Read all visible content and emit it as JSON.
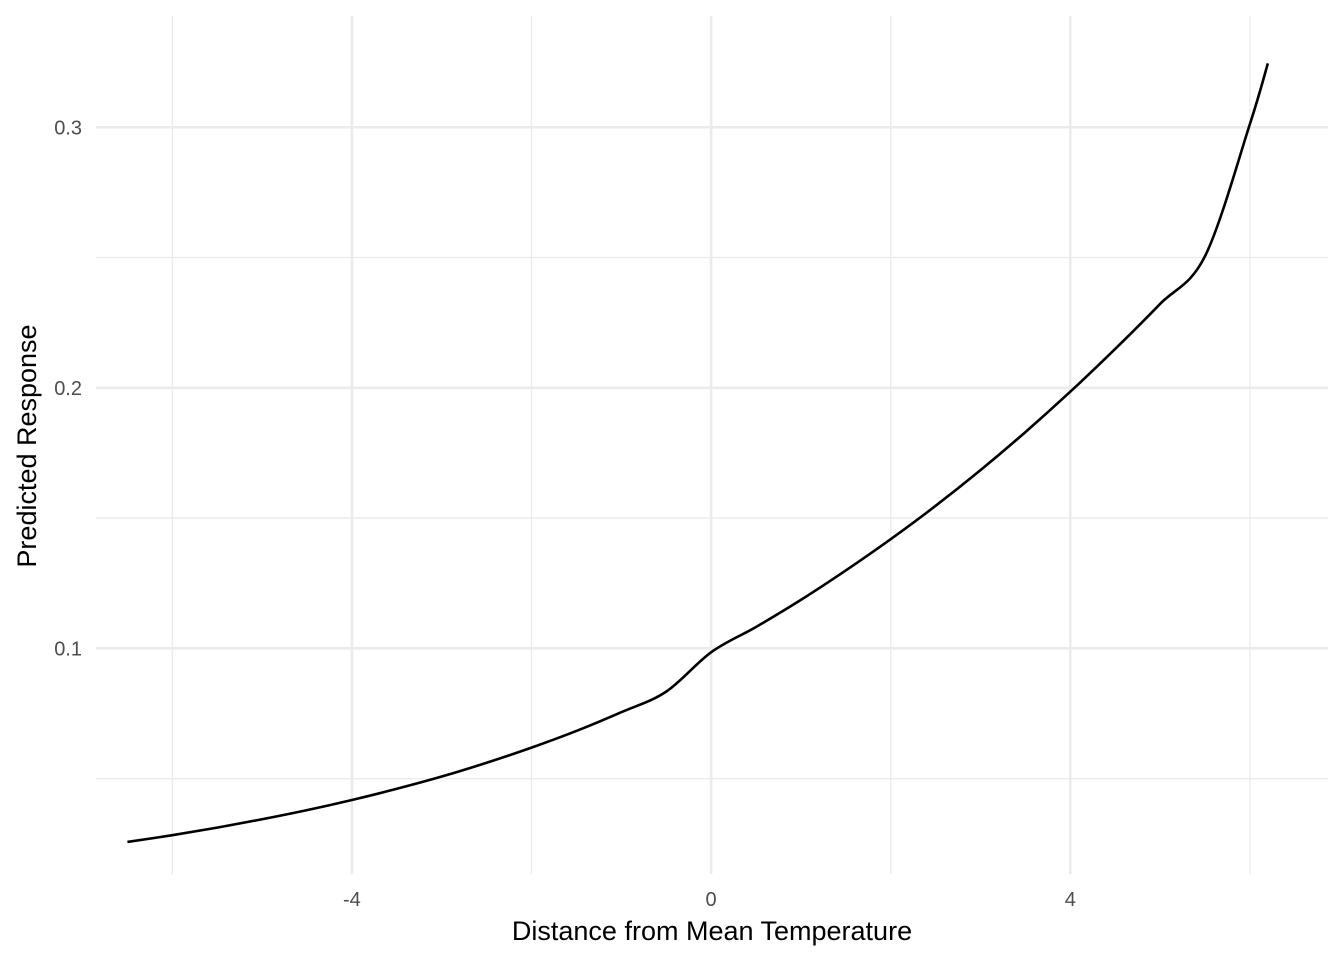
{
  "chart_data": {
    "type": "line",
    "title": "",
    "xlabel": "Distance from Mean Temperature",
    "ylabel": "Predicted Response",
    "xlim": [
      -6.85,
      6.87
    ],
    "ylim": [
      0.0134,
      0.3427
    ],
    "x_major_ticks": [
      -4,
      0,
      4
    ],
    "x_major_tick_labels": [
      "-4",
      "0",
      "4"
    ],
    "x_minor_ticks": [
      -6,
      -2,
      2,
      6
    ],
    "y_major_ticks": [
      0.1,
      0.2,
      0.3
    ],
    "y_major_tick_labels": [
      "0.1",
      "0.2",
      "0.3"
    ],
    "y_minor_ticks": [
      0.05,
      0.15,
      0.25
    ],
    "grid": true,
    "legend": "none",
    "line_color": "#000000",
    "grid_color": "#ebebeb",
    "series": [
      {
        "x": [
          -6.5,
          -6.0,
          -5.5,
          -5.0,
          -4.5,
          -4.0,
          -3.5,
          -3.0,
          -2.5,
          -2.0,
          -1.5,
          -1.0,
          -0.5,
          0.0,
          0.5,
          1.0,
          1.5,
          2.0,
          2.5,
          3.0,
          3.5,
          4.0,
          4.5,
          5.0,
          5.5,
          6.0,
          6.2
        ],
        "y": [
          0.0257,
          0.0283,
          0.0312,
          0.0344,
          0.0379,
          0.0418,
          0.0461,
          0.0508,
          0.0561,
          0.0619,
          0.0683,
          0.0755,
          0.0834,
          0.0985,
          0.1082,
          0.1186,
          0.1299,
          0.1419,
          0.1547,
          0.1684,
          0.183,
          0.1985,
          0.2149,
          0.2322,
          0.2505,
          0.3012,
          0.3245
        ]
      }
    ]
  }
}
